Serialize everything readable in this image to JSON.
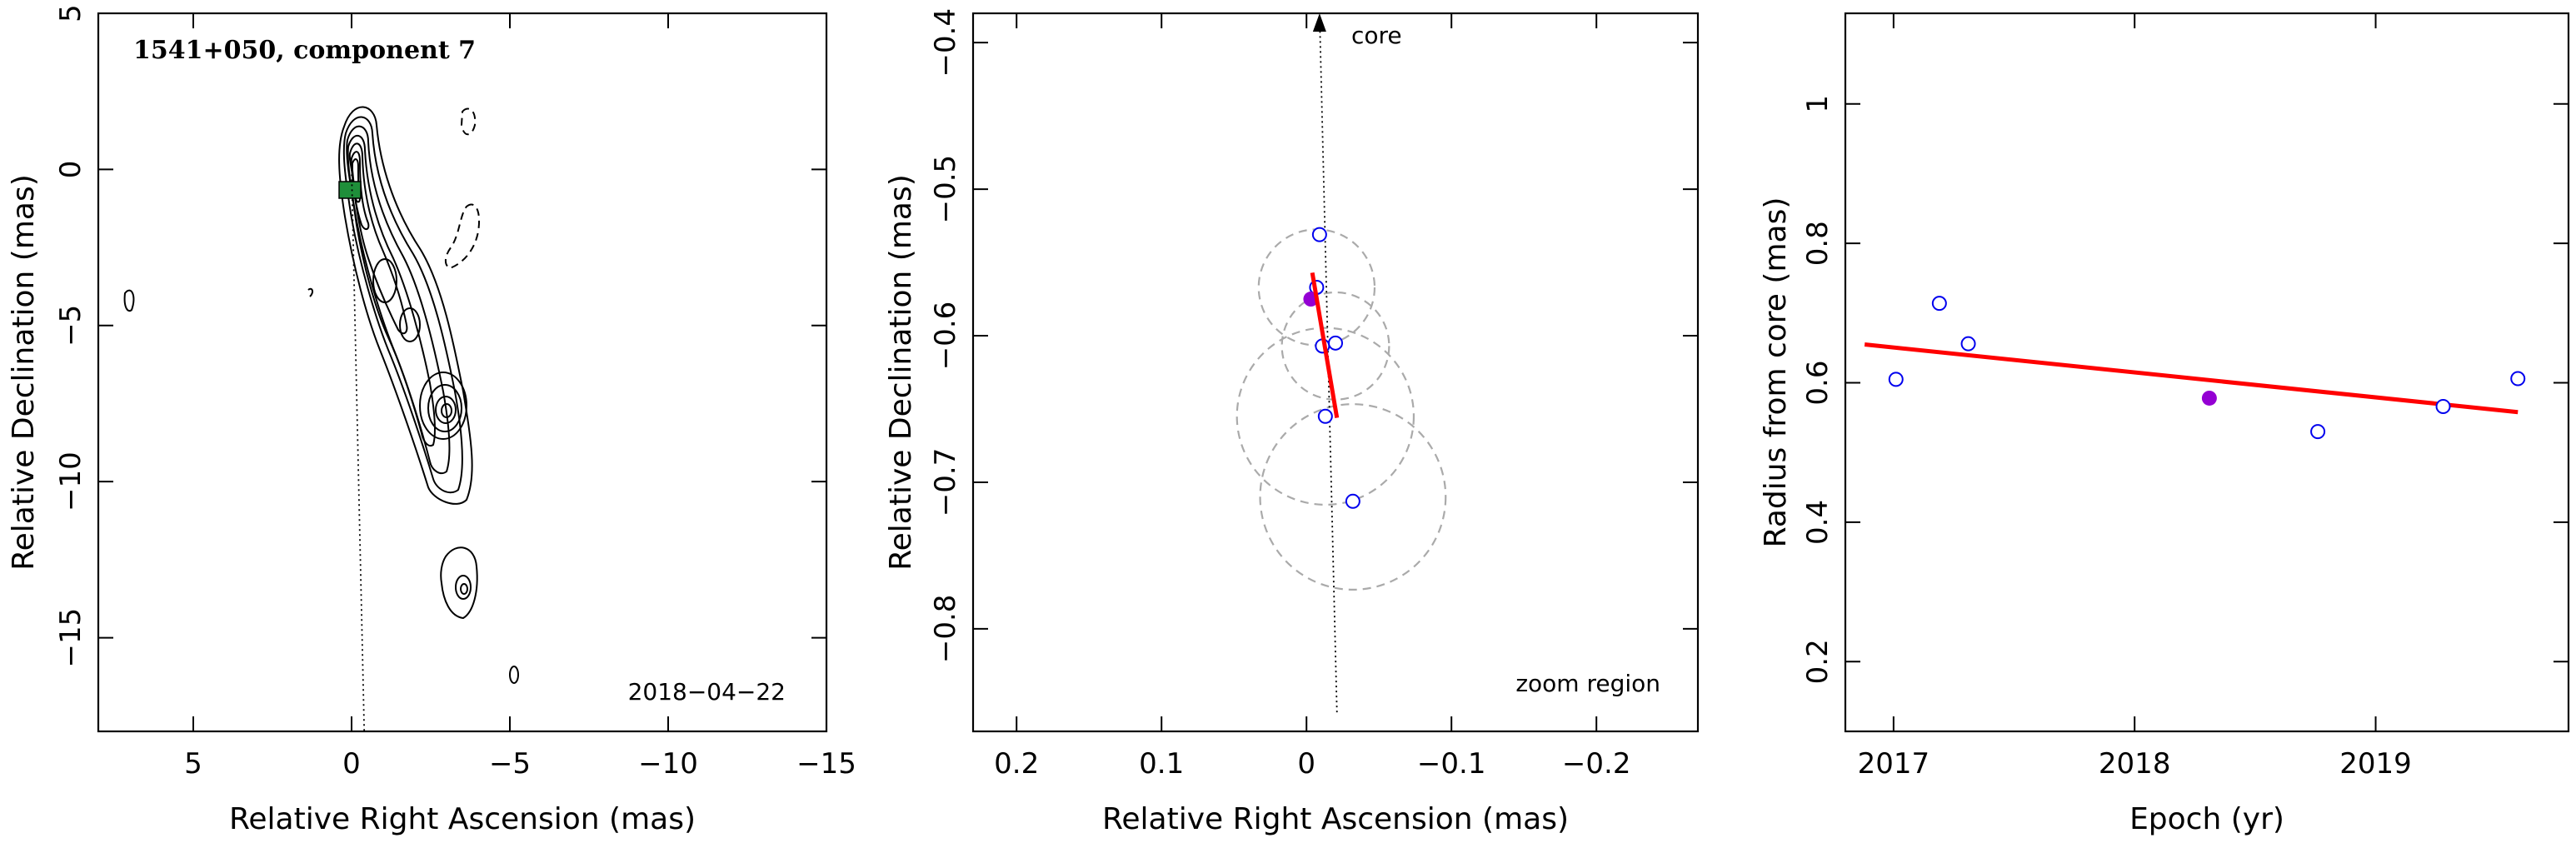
{
  "colors": {
    "open_marker": "#0000ee",
    "filled_marker": "#9400d3",
    "fit_line": "#ff0000",
    "error_circle": "#aaaaaa",
    "core_box": "#1f8f3a"
  },
  "chart_data": [
    {
      "type": "contour",
      "title": "1541+050, component 7",
      "annotation": "2018−04−22",
      "xlabel": "Relative Right Ascension (mas)",
      "ylabel": "Relative Declination (mas)",
      "xlim": [
        8,
        -15
      ],
      "ylim": [
        -18,
        5
      ],
      "xticks": [
        5,
        0,
        -5,
        -10,
        -15
      ],
      "xtick_labels": [
        "5",
        "0",
        "−5",
        "−10",
        "−15"
      ],
      "yticks": [
        5,
        0,
        -5,
        -10,
        -15
      ],
      "ytick_labels": [
        "5",
        "0",
        "−5",
        "−10",
        "−15"
      ],
      "jet_direction_line": [
        [
          0,
          0
        ],
        [
          -0.4,
          -18
        ]
      ],
      "component_marker": [
        0,
        -0.6
      ]
    },
    {
      "type": "scatter",
      "annotation": "zoom region",
      "core_label": "core",
      "xlabel": "Relative Right Ascension (mas)",
      "ylabel": "Relative Declination (mas)",
      "xlim": [
        0.23,
        -0.27
      ],
      "ylim": [
        -0.87,
        -0.38
      ],
      "xticks": [
        0.2,
        0.1,
        0,
        -0.1,
        -0.2
      ],
      "xtick_labels": [
        "0.2",
        "0.1",
        "0",
        "−0.1",
        "−0.2"
      ],
      "yticks": [
        -0.4,
        -0.5,
        -0.6,
        -0.7,
        -0.8
      ],
      "ytick_labels": [
        "−0.4",
        "−0.5",
        "−0.6",
        "−0.7",
        "−0.8"
      ],
      "points_open": [
        {
          "x": -0.009,
          "y": -0.531
        },
        {
          "x": -0.007,
          "y": -0.567
        },
        {
          "x": -0.011,
          "y": -0.607
        },
        {
          "x": -0.02,
          "y": -0.605
        },
        {
          "x": -0.013,
          "y": -0.655
        },
        {
          "x": -0.032,
          "y": -0.713
        }
      ],
      "point_filled": {
        "x": -0.003,
        "y": -0.575
      },
      "error_circles": [
        {
          "x": -0.007,
          "y": -0.567,
          "r": 0.04
        },
        {
          "x": -0.02,
          "y": -0.607,
          "r": 0.037
        },
        {
          "x": -0.013,
          "y": -0.655,
          "r": 0.061
        },
        {
          "x": -0.032,
          "y": -0.71,
          "r": 0.064
        }
      ],
      "fit_line": [
        [
          -0.004,
          -0.557
        ],
        [
          -0.021,
          -0.656
        ]
      ],
      "core_direction_line": [
        [
          -0.021,
          -0.857
        ],
        [
          -0.009,
          -0.38
        ]
      ]
    },
    {
      "type": "scatter",
      "xlabel": "Epoch (yr)",
      "ylabel": "Radius from core (mas)",
      "xlim": [
        2016.8,
        2019.8
      ],
      "ylim": [
        0.1,
        1.13
      ],
      "xticks": [
        2017,
        2018,
        2019
      ],
      "xtick_labels": [
        "2017",
        "2018",
        "2019"
      ],
      "yticks": [
        0.2,
        0.4,
        0.6,
        0.8,
        1.0
      ],
      "ytick_labels": [
        "0.2",
        "0.4",
        "0.6",
        "0.8",
        "1"
      ],
      "points_open": [
        {
          "x": 2017.01,
          "y": 0.605
        },
        {
          "x": 2017.19,
          "y": 0.714
        },
        {
          "x": 2017.31,
          "y": 0.656
        },
        {
          "x": 2018.76,
          "y": 0.53
        },
        {
          "x": 2019.28,
          "y": 0.566
        },
        {
          "x": 2019.59,
          "y": 0.606
        }
      ],
      "point_filled": {
        "x": 2018.31,
        "y": 0.578
      },
      "fit_line": [
        [
          2016.88,
          0.655
        ],
        [
          2019.59,
          0.558
        ]
      ]
    }
  ]
}
